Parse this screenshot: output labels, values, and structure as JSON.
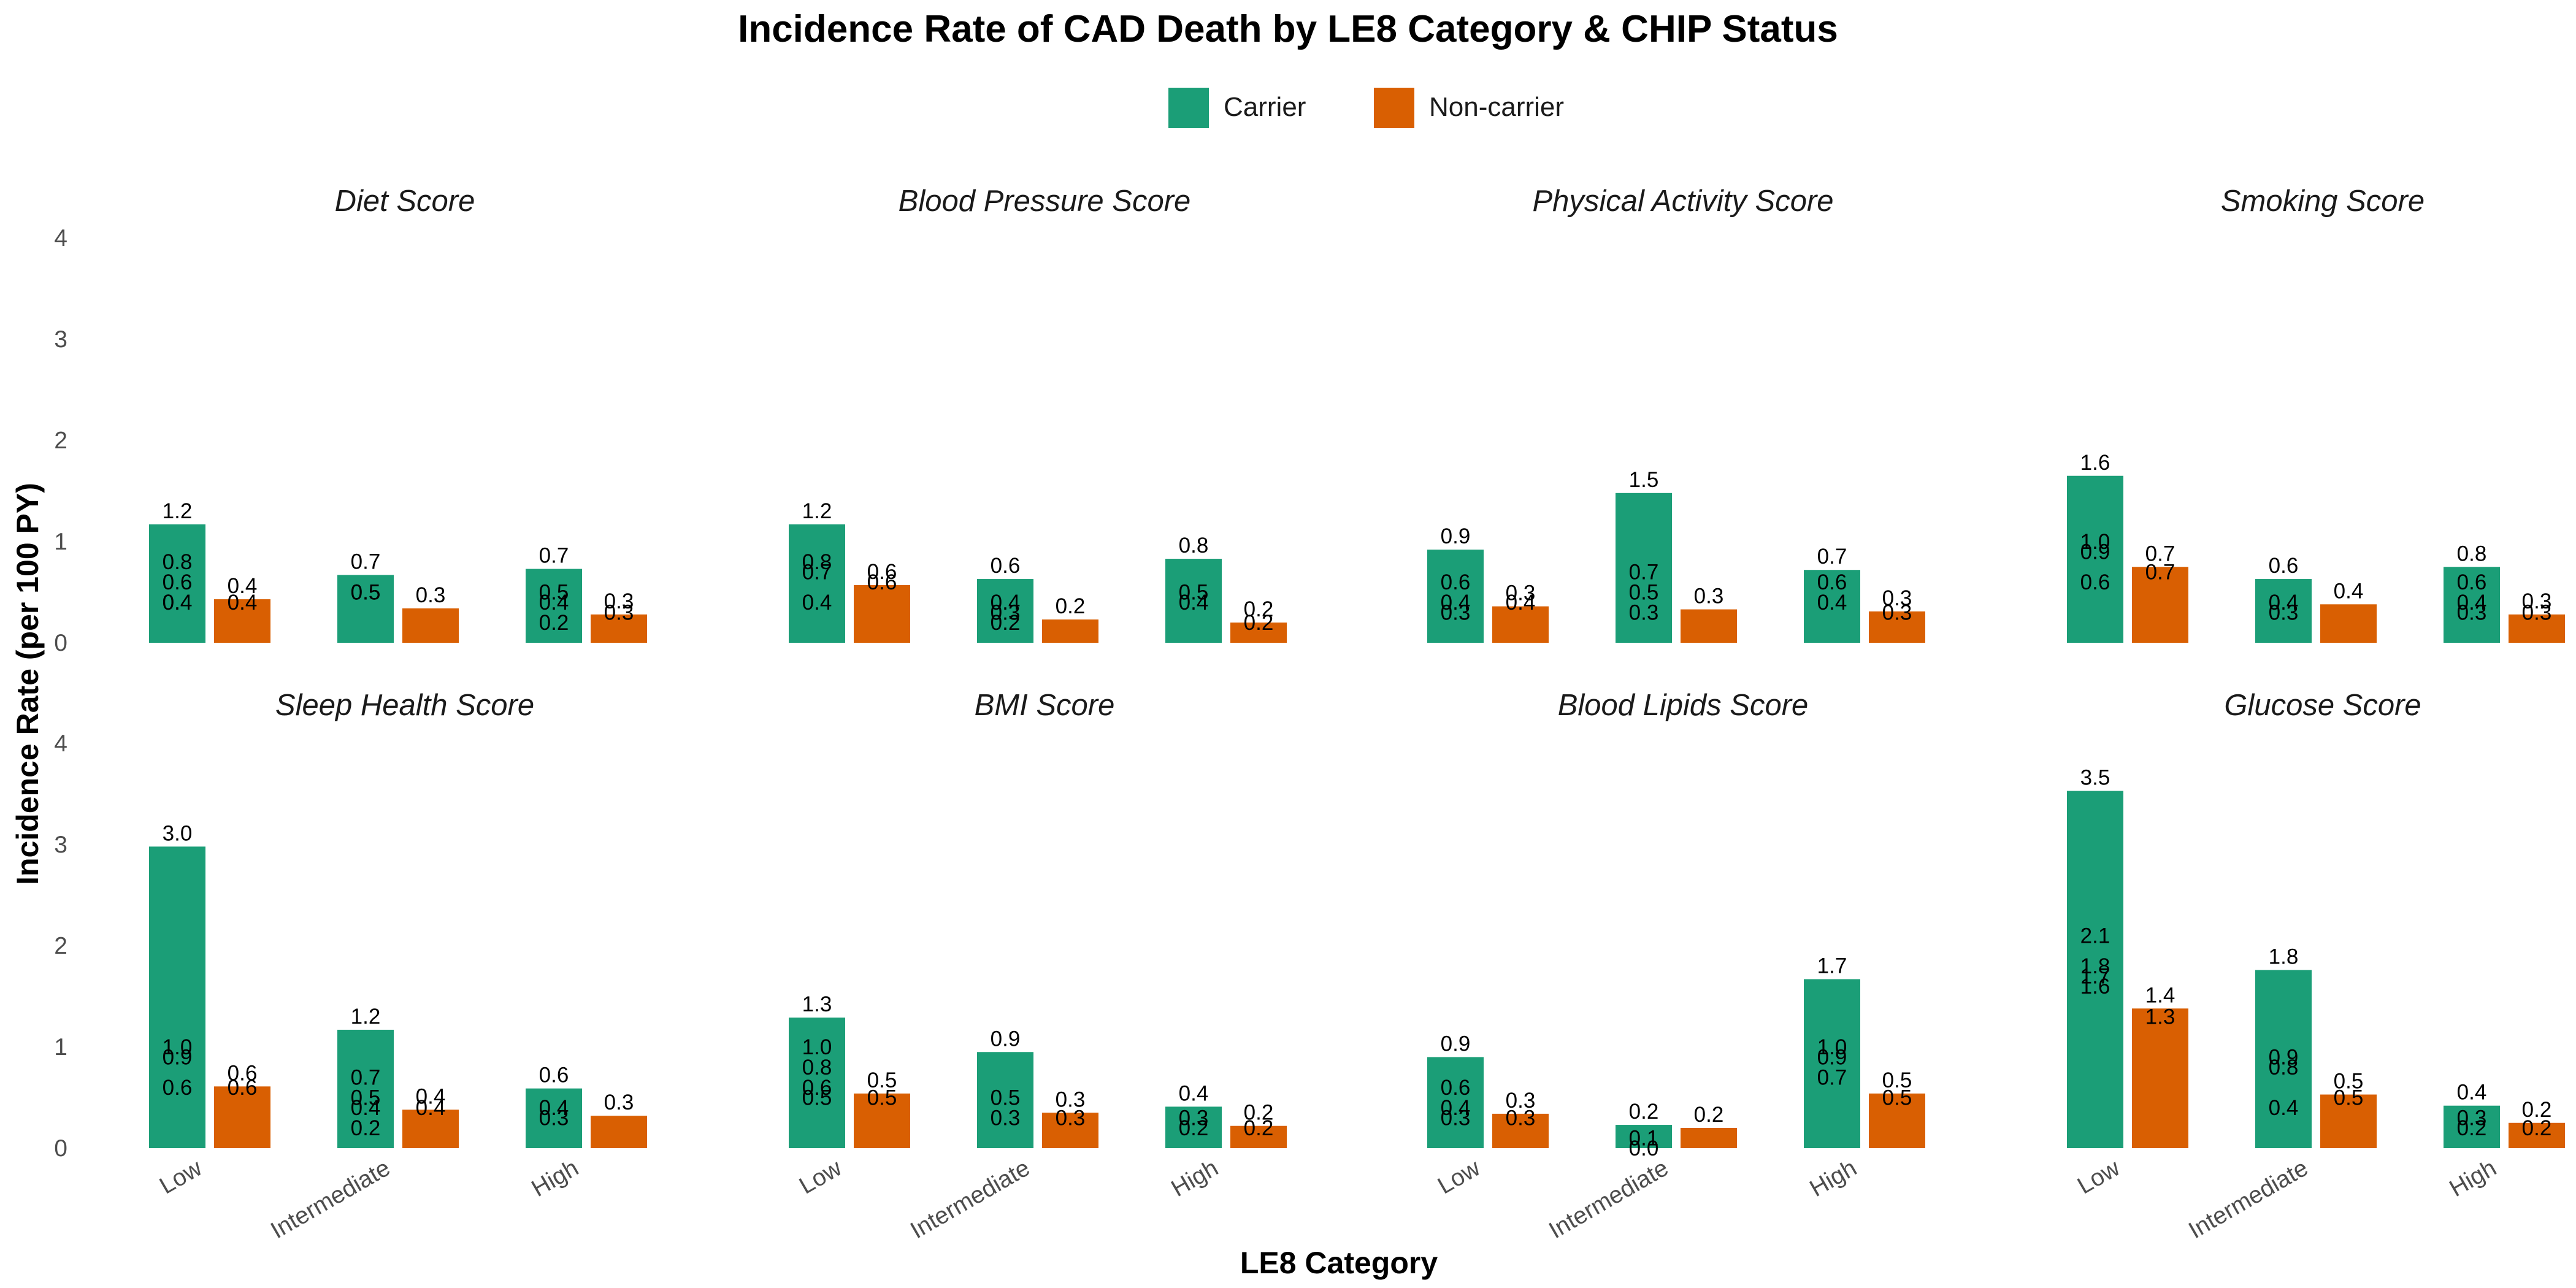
{
  "chart_data": {
    "type": "bar",
    "title": "Incidence Rate of CAD Death by LE8 Category & CHIP Status",
    "xlabel": "LE8 Category",
    "ylabel": "Incidence Rate (per 100 PY)",
    "ylim": [
      0,
      4
    ],
    "yticks": [
      "0",
      "1",
      "2",
      "3",
      "4"
    ],
    "categories": [
      "Low",
      "Intermediate",
      "High"
    ],
    "legend": {
      "position": "top",
      "entries": [
        {
          "name": "Carrier",
          "color": "#1b9e77"
        },
        {
          "name": "Non-carrier",
          "color": "#d95f02"
        }
      ]
    },
    "grid": false,
    "facets": [
      {
        "title": "Diet Score",
        "series": [
          {
            "name": "Carrier",
            "values": [
              1.17,
              0.67,
              0.73
            ],
            "labels": [
              [
                "1.2",
                "0.8",
                "0.6",
                "0.4",
                "0.4"
              ],
              [
                "0.7",
                "0.5",
                "0.5"
              ],
              [
                "0.7",
                "0.5",
                "0.4",
                "0.2"
              ]
            ]
          },
          {
            "name": "Non-carrier",
            "values": [
              0.43,
              0.34,
              0.28
            ],
            "labels": [
              [
                "0.4",
                "0.4"
              ],
              [
                "0.3"
              ],
              [
                "0.3",
                "0.3"
              ]
            ]
          }
        ]
      },
      {
        "title": "Blood Pressure Score",
        "series": [
          {
            "name": "Carrier",
            "values": [
              1.17,
              0.63,
              0.83
            ],
            "labels": [
              [
                "1.2",
                "0.8",
                "0.7",
                "0.4"
              ],
              [
                "0.6",
                "0.4",
                "0.3",
                "0.2"
              ],
              [
                "0.8",
                "0.5",
                "0.4"
              ]
            ]
          },
          {
            "name": "Non-carrier",
            "values": [
              0.57,
              0.23,
              0.2
            ],
            "labels": [
              [
                "0.6",
                "0.6"
              ],
              [
                "0.2"
              ],
              [
                "0.2",
                "0.2"
              ]
            ]
          }
        ]
      },
      {
        "title": "Physical Activity Score",
        "series": [
          {
            "name": "Carrier",
            "values": [
              0.92,
              1.48,
              0.72
            ],
            "labels": [
              [
                "0.9",
                "0.6",
                "0.4",
                "0.3"
              ],
              [
                "1.5",
                "0.7",
                "0.5",
                "0.3"
              ],
              [
                "0.7",
                "0.6",
                "0.4"
              ]
            ]
          },
          {
            "name": "Non-carrier",
            "values": [
              0.36,
              0.33,
              0.31
            ],
            "labels": [
              [
                "0.3",
                "0.4"
              ],
              [
                "0.3"
              ],
              [
                "0.3",
                "0.3"
              ]
            ]
          }
        ]
      },
      {
        "title": "Smoking Score",
        "series": [
          {
            "name": "Carrier",
            "values": [
              1.65,
              0.63,
              0.75
            ],
            "labels": [
              [
                "1.6",
                "1.0",
                "0.9",
                "0.6"
              ],
              [
                "0.6",
                "0.4",
                "0.3"
              ],
              [
                "0.8",
                "0.6",
                "0.4",
                "0.3"
              ]
            ]
          },
          {
            "name": "Non-carrier",
            "values": [
              0.75,
              0.38,
              0.28
            ],
            "labels": [
              [
                "0.7",
                "0.7"
              ],
              [
                "0.4"
              ],
              [
                "0.3",
                "0.3"
              ]
            ]
          }
        ]
      },
      {
        "title": "Sleep Health Score",
        "series": [
          {
            "name": "Carrier",
            "values": [
              2.98,
              1.17,
              0.59
            ],
            "labels": [
              [
                "3.0",
                "1.0",
                "0.9",
                "0.6"
              ],
              [
                "1.2",
                "0.7",
                "0.5",
                "0.4",
                "0.2"
              ],
              [
                "0.6",
                "0.4",
                "0.3"
              ]
            ]
          },
          {
            "name": "Non-carrier",
            "values": [
              0.61,
              0.38,
              0.32
            ],
            "labels": [
              [
                "0.6",
                "0.6"
              ],
              [
                "0.4",
                "0.4"
              ],
              [
                "0.3"
              ]
            ]
          }
        ]
      },
      {
        "title": "BMI Score",
        "series": [
          {
            "name": "Carrier",
            "values": [
              1.29,
              0.95,
              0.41
            ],
            "labels": [
              [
                "1.3",
                "1.0",
                "0.8",
                "0.6",
                "0.5"
              ],
              [
                "0.9",
                "0.5",
                "0.3"
              ],
              [
                "0.4",
                "0.3",
                "0.2"
              ]
            ]
          },
          {
            "name": "Non-carrier",
            "values": [
              0.54,
              0.35,
              0.22
            ],
            "labels": [
              [
                "0.5",
                "0.5"
              ],
              [
                "0.3",
                "0.3"
              ],
              [
                "0.2",
                "0.2"
              ]
            ]
          }
        ]
      },
      {
        "title": "Blood Lipids Score",
        "series": [
          {
            "name": "Carrier",
            "values": [
              0.9,
              0.23,
              1.67
            ],
            "labels": [
              [
                "0.9",
                "0.6",
                "0.4",
                "0.3"
              ],
              [
                "0.2",
                "0.1",
                "0.0"
              ],
              [
                "1.7",
                "1.0",
                "0.9",
                "0.7"
              ]
            ]
          },
          {
            "name": "Non-carrier",
            "values": [
              0.34,
              0.2,
              0.54
            ],
            "labels": [
              [
                "0.3",
                "0.3"
              ],
              [
                "0.2"
              ],
              [
                "0.5",
                "0.5"
              ]
            ]
          }
        ]
      },
      {
        "title": "Glucose Score",
        "series": [
          {
            "name": "Carrier",
            "values": [
              3.53,
              1.76,
              0.42
            ],
            "labels": [
              [
                "3.5",
                "2.1",
                "1.8",
                "1.7",
                "1.6"
              ],
              [
                "1.8",
                "0.9",
                "0.8",
                "0.4"
              ],
              [
                "0.4",
                "0.3",
                "0.2"
              ]
            ]
          },
          {
            "name": "Non-carrier",
            "values": [
              1.38,
              0.53,
              0.25
            ],
            "labels": [
              [
                "1.4",
                "1.3"
              ],
              [
                "0.5",
                "0.5"
              ],
              [
                "0.2",
                "0.2"
              ]
            ]
          }
        ]
      }
    ]
  }
}
